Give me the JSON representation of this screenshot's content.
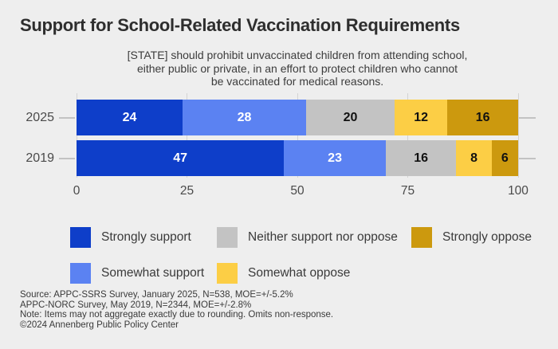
{
  "title": "Support for School-Related Vaccination Requirements",
  "subtitle_lines": {
    "line1": "[STATE] should prohibit unvaccinated children from attending school,",
    "line2": "either public or private, in an effort to protect children who cannot",
    "line3": "be vaccinated for medical reasons."
  },
  "chart_data": {
    "type": "bar",
    "orientation": "horizontal",
    "stacked": true,
    "categories": [
      "2025",
      "2019"
    ],
    "series": [
      {
        "name": "Strongly support",
        "color": "#0e3ec9",
        "label_color": "#ffffff",
        "values": [
          24,
          47
        ]
      },
      {
        "name": "Somewhat support",
        "color": "#5b82f2",
        "label_color": "#ffffff",
        "values": [
          28,
          23
        ]
      },
      {
        "name": "Neither support nor oppose",
        "color": "#c3c3c3",
        "label_color": "#111111",
        "values": [
          20,
          16
        ]
      },
      {
        "name": "Somewhat oppose",
        "color": "#fcce45",
        "label_color": "#111111",
        "values": [
          12,
          8
        ]
      },
      {
        "name": "Strongly oppose",
        "color": "#cc990e",
        "label_color": "#111111",
        "values": [
          16,
          6
        ]
      }
    ],
    "xlim": [
      0,
      100
    ],
    "x_ticks": [
      0,
      25,
      50,
      75,
      100
    ],
    "grid": true,
    "legend_position": "bottom"
  },
  "footer_lines": {
    "line1": "Source: APPC-SSRS Survey, January 2025, N=538, MOE=+/-5.2%",
    "line2": "APPC-NORC Survey, May 2019, N=2344, MOE=+/-2.8%",
    "line3": "Note: Items may not aggregate exactly due to rounding. Omits non-response.",
    "line4": "©2024 Annenberg Public Policy Center"
  },
  "colors": {
    "background": "#eeeeee",
    "gridline": "#d3d3d3",
    "category_tick": "#c2c2c2",
    "title_text": "#2e2e2e",
    "body_text": "#3c3c3c",
    "axis_text": "#4a4a4a"
  }
}
